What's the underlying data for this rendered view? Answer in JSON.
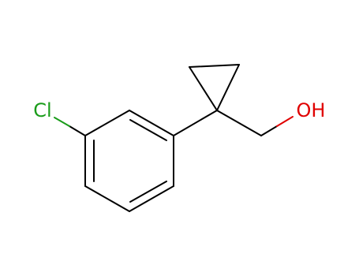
{
  "atoms": [
    {
      "label": "Cl"
    },
    {
      "label": "OH"
    }
  ]
}
